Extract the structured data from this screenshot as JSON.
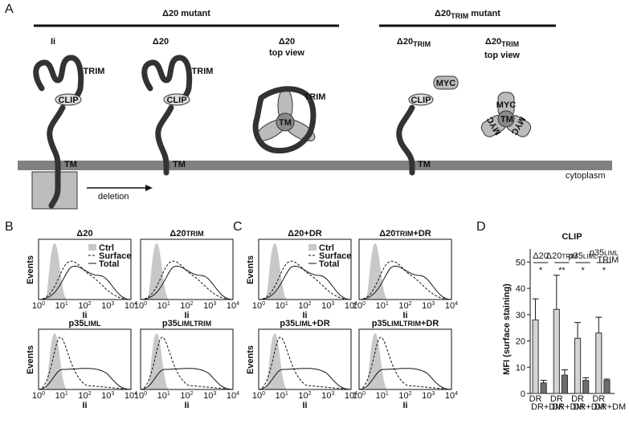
{
  "panel_a": {
    "label": "A",
    "groups": [
      {
        "main": "Δ20 mutant"
      },
      {
        "main": "Δ20",
        "sub": "TRIM",
        "suffix": " mutant"
      }
    ],
    "molecules": [
      {
        "main": "Ii"
      },
      {
        "main": "Δ20"
      },
      {
        "main": "Δ20",
        "line2": "top view"
      },
      {
        "main": "Δ20",
        "sub": "TRIM"
      },
      {
        "main": "Δ20",
        "sub": "TRIM",
        "line2": "top view"
      }
    ],
    "parts": {
      "trim": "TRIM",
      "clip": "CLIP",
      "tm": "TM",
      "myc": "MYC"
    },
    "arrow": "deletion",
    "region": "cytoplasm"
  },
  "panel_b": {
    "label": "B",
    "plots": [
      {
        "main": "Δ20"
      },
      {
        "main": "Δ20",
        "sub": "TRIM"
      },
      {
        "main": "p35",
        "sub": "LIML"
      },
      {
        "main": "p35",
        "sub": "LIMLTRIM"
      }
    ]
  },
  "panel_c": {
    "label": "C",
    "plots": [
      {
        "main": "Δ20",
        "suffix": "+DR"
      },
      {
        "main": "Δ20",
        "sub": "TRIM",
        "suffix": "+DR"
      },
      {
        "main": "p35",
        "sub": "LIML",
        "suffix": "+DR"
      },
      {
        "main": "p35",
        "sub": "LIMLTRIM",
        "suffix": "+DR"
      }
    ]
  },
  "histogram": {
    "y_label": "Events",
    "x_label": "Ii",
    "tick_base": "10",
    "tick_exps": [
      "0",
      "1",
      "2",
      "3",
      "4"
    ],
    "legend": [
      "Ctrl",
      "Surface",
      "Total"
    ]
  },
  "panel_d": {
    "label": "D",
    "chart": {
      "type": "bar",
      "title": "CLIP",
      "y_label": "MFI (surface staining)",
      "ylim": [
        0,
        55
      ],
      "yticks": [
        0,
        10,
        20,
        30,
        40,
        50
      ],
      "groups": [
        {
          "main": "Δ20"
        },
        {
          "main": "Δ20",
          "sub": "TRIM"
        },
        {
          "main": "p35",
          "sub": "LIML"
        },
        {
          "main": "p35",
          "sub": "LIML",
          "sub2": "TRIM"
        }
      ],
      "significance": [
        "*",
        "**",
        "*",
        "*"
      ],
      "series": [
        {
          "name": "DR",
          "color": "#d4d4d4",
          "values": [
            28,
            32,
            21,
            23
          ],
          "errors": [
            8,
            13,
            6,
            6
          ]
        },
        {
          "name": "DR+DM",
          "color": "#6e6e6e",
          "values": [
            4,
            7,
            5,
            5
          ],
          "errors": [
            1,
            2,
            1,
            0.5
          ]
        }
      ]
    }
  }
}
